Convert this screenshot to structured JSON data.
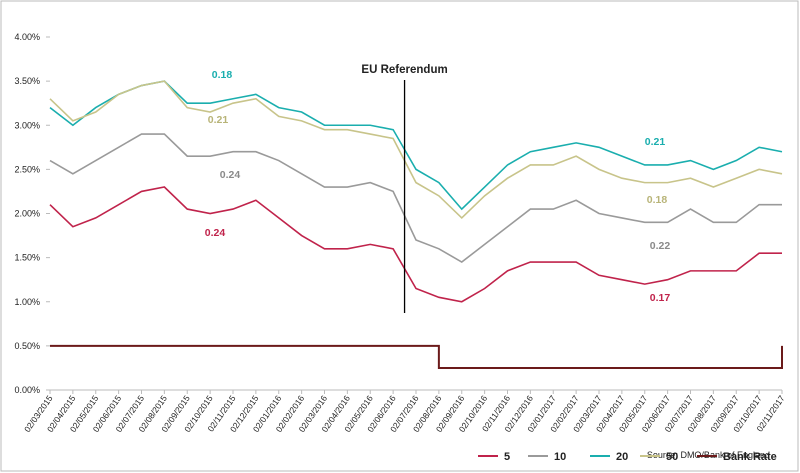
{
  "chart_data": {
    "type": "line",
    "categories": [
      "02/03/2015",
      "02/04/2015",
      "02/05/2015",
      "02/06/2015",
      "02/07/2015",
      "02/08/2015",
      "02/09/2015",
      "02/10/2015",
      "02/11/2015",
      "02/12/2015",
      "02/01/2016",
      "02/02/2016",
      "02/03/2016",
      "02/04/2016",
      "02/05/2016",
      "02/06/2016",
      "02/07/2016",
      "02/08/2016",
      "02/09/2016",
      "02/10/2016",
      "02/11/2016",
      "02/12/2016",
      "02/01/2017",
      "02/02/2017",
      "02/03/2017",
      "02/04/2017",
      "02/05/2017",
      "02/06/2017",
      "02/07/2017",
      "02/08/2017",
      "02/09/2017",
      "02/10/2017",
      "02/11/2017"
    ],
    "series": [
      {
        "name": "5",
        "color": "#c0234b",
        "values": [
          2.1,
          1.85,
          1.95,
          2.1,
          2.25,
          2.3,
          2.05,
          2.0,
          2.05,
          2.15,
          1.95,
          1.75,
          1.6,
          1.6,
          1.65,
          1.6,
          1.15,
          1.05,
          1.0,
          1.15,
          1.35,
          1.45,
          1.45,
          1.45,
          1.3,
          1.25,
          1.2,
          1.25,
          1.35,
          1.35,
          1.35,
          1.55,
          1.55
        ]
      },
      {
        "name": "10",
        "color": "#9a9a9a",
        "values": [
          2.6,
          2.45,
          2.6,
          2.75,
          2.9,
          2.9,
          2.65,
          2.65,
          2.7,
          2.7,
          2.6,
          2.45,
          2.3,
          2.3,
          2.35,
          2.25,
          1.7,
          1.6,
          1.45,
          1.65,
          1.85,
          2.05,
          2.05,
          2.15,
          2.0,
          1.95,
          1.9,
          1.9,
          2.05,
          1.9,
          1.9,
          2.1,
          2.1
        ]
      },
      {
        "name": "20",
        "color": "#1aaeae",
        "values": [
          3.2,
          3.0,
          3.2,
          3.35,
          3.45,
          3.5,
          3.25,
          3.25,
          3.3,
          3.35,
          3.2,
          3.15,
          3.0,
          3.0,
          3.0,
          2.95,
          2.5,
          2.35,
          2.05,
          2.3,
          2.55,
          2.7,
          2.75,
          2.8,
          2.75,
          2.65,
          2.55,
          2.55,
          2.6,
          2.5,
          2.6,
          2.75,
          2.7
        ]
      },
      {
        "name": "50",
        "color": "#c8c48a",
        "values": [
          3.3,
          3.05,
          3.15,
          3.35,
          3.45,
          3.5,
          3.2,
          3.15,
          3.25,
          3.3,
          3.1,
          3.05,
          2.95,
          2.95,
          2.9,
          2.85,
          2.35,
          2.2,
          1.95,
          2.2,
          2.4,
          2.55,
          2.55,
          2.65,
          2.5,
          2.4,
          2.35,
          2.35,
          2.4,
          2.3,
          2.4,
          2.5,
          2.45
        ]
      },
      {
        "name": "Bank Rate",
        "color": "#6b1a1a",
        "step": true,
        "values": [
          0.5,
          0.5,
          0.5,
          0.5,
          0.5,
          0.5,
          0.5,
          0.5,
          0.5,
          0.5,
          0.5,
          0.5,
          0.5,
          0.5,
          0.5,
          0.5,
          0.5,
          0.25,
          0.25,
          0.25,
          0.25,
          0.25,
          0.25,
          0.25,
          0.25,
          0.25,
          0.25,
          0.25,
          0.25,
          0.25,
          0.25,
          0.25,
          0.5
        ]
      }
    ],
    "ylim": [
      0,
      4
    ],
    "yticks": [
      {
        "value": 0,
        "label": "0.00%"
      },
      {
        "value": 0.5,
        "label": "0.50%"
      },
      {
        "value": 1,
        "label": "1.00%"
      },
      {
        "value": 1.5,
        "label": "1.50%"
      },
      {
        "value": 2,
        "label": "2.00%"
      },
      {
        "value": 2.5,
        "label": "2.50%"
      },
      {
        "value": 3,
        "label": "3.00%"
      },
      {
        "value": 3.5,
        "label": "3.50%"
      },
      {
        "value": 4,
        "label": "4.00%"
      }
    ],
    "grid": false,
    "event": "EU Referendum",
    "annotations": [
      {
        "text": "0.18",
        "color": "#1aaeae"
      },
      {
        "text": "0.21",
        "color": "#b8b478"
      },
      {
        "text": "0.24",
        "color": "#8a8a8a"
      },
      {
        "text": "0.24",
        "color": "#c0234b"
      },
      {
        "text": "0.21",
        "color": "#1aaeae"
      },
      {
        "text": "0.18",
        "color": "#b8b478"
      },
      {
        "text": "0.22",
        "color": "#8a8a8a"
      },
      {
        "text": "0.17",
        "color": "#c0234b"
      }
    ],
    "source": "Source:  DMO/Bank of England"
  }
}
